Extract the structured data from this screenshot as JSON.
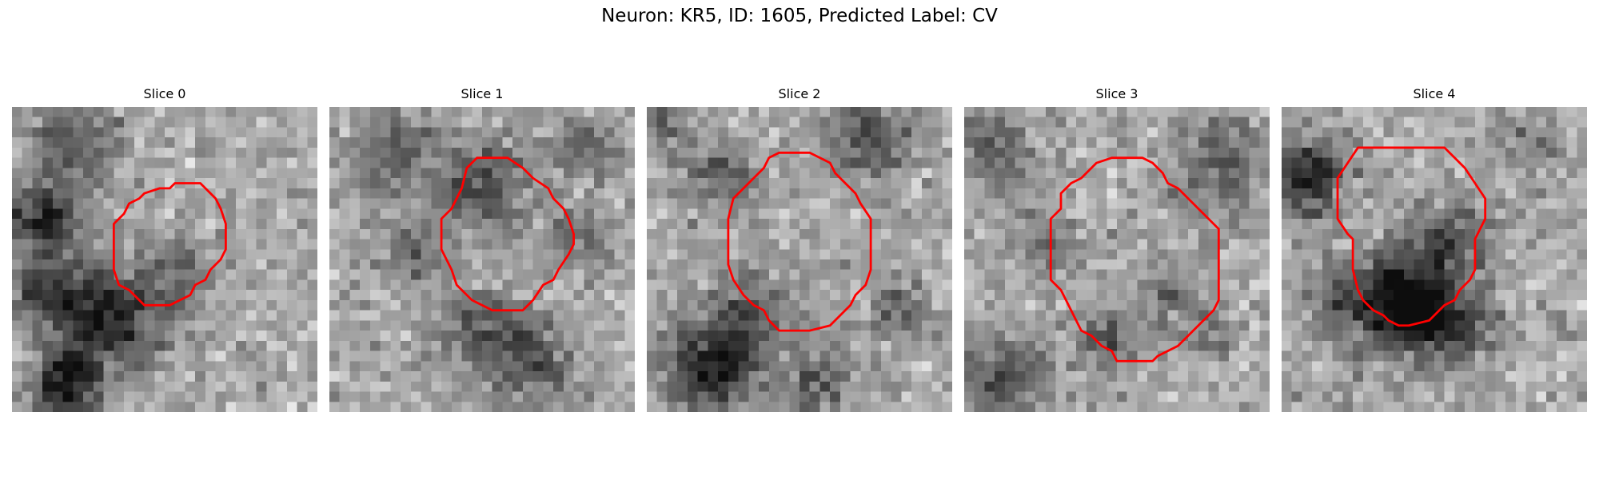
{
  "figure": {
    "title": "Neuron: KR5, ID: 1605, Predicted Label: CV",
    "slices": [
      {
        "title": "Slice 0",
        "seed": 11,
        "dark_spots": [
          [
            6,
            4,
            3.0,
            0.35
          ],
          [
            3,
            11,
            2.5,
            0.5
          ],
          [
            8,
            20,
            3.0,
            0.5
          ],
          [
            5,
            28,
            2.5,
            0.4
          ],
          [
            3,
            18,
            2.0,
            0.45
          ],
          [
            6,
            26,
            2.0,
            0.3
          ],
          [
            12,
            22,
            3.5,
            0.2
          ],
          [
            16,
            16,
            2.5,
            0.25
          ]
        ],
        "contour": [
          [
            16,
            7.5
          ],
          [
            18.5,
            7.5
          ],
          [
            19.5,
            8.5
          ],
          [
            20,
            9
          ],
          [
            20.5,
            10
          ],
          [
            21,
            11.5
          ],
          [
            21,
            14
          ],
          [
            20.5,
            15
          ],
          [
            19.5,
            16
          ],
          [
            19,
            17
          ],
          [
            18,
            17.5
          ],
          [
            17.5,
            18.5
          ],
          [
            16.5,
            19
          ],
          [
            15.5,
            19.5
          ],
          [
            13,
            19.5
          ],
          [
            12,
            18.5
          ],
          [
            11.5,
            18
          ],
          [
            10.5,
            17.5
          ],
          [
            10,
            16
          ],
          [
            10,
            11.5
          ],
          [
            11,
            10.5
          ],
          [
            11.5,
            9.5
          ],
          [
            12.5,
            9
          ],
          [
            13,
            8.5
          ],
          [
            14.5,
            8
          ],
          [
            15.5,
            8
          ]
        ]
      },
      {
        "title": "Slice 1",
        "seed": 23,
        "dark_spots": [
          [
            15,
            8,
            3.0,
            0.4
          ],
          [
            6,
            5,
            3.0,
            0.3
          ],
          [
            15,
            22,
            3.0,
            0.3
          ],
          [
            20,
            25,
            3.0,
            0.3
          ],
          [
            8,
            14,
            2.0,
            0.3
          ],
          [
            24,
            13,
            2.0,
            0.25
          ],
          [
            25,
            4,
            2.0,
            0.3
          ]
        ],
        "contour": [
          [
            14.5,
            5
          ],
          [
            17.5,
            5
          ],
          [
            19,
            6
          ],
          [
            20,
            7
          ],
          [
            21.5,
            8
          ],
          [
            22,
            9
          ],
          [
            23,
            10
          ],
          [
            23.5,
            11
          ],
          [
            24,
            12.5
          ],
          [
            24,
            13.5
          ],
          [
            23.5,
            14.5
          ],
          [
            22.5,
            16
          ],
          [
            22,
            17
          ],
          [
            21,
            17.5
          ],
          [
            20,
            19
          ],
          [
            19,
            20
          ],
          [
            16,
            20
          ],
          [
            15,
            19.5
          ],
          [
            14,
            19
          ],
          [
            13.5,
            18.5
          ],
          [
            12.5,
            17.5
          ],
          [
            12,
            16
          ],
          [
            11.5,
            15
          ],
          [
            11,
            14
          ],
          [
            11,
            11
          ],
          [
            12,
            10
          ],
          [
            13,
            8
          ],
          [
            13.5,
            6
          ]
        ]
      },
      {
        "title": "Slice 2",
        "seed": 37,
        "dark_spots": [
          [
            6,
            26,
            3.0,
            0.5
          ],
          [
            10,
            21,
            3.0,
            0.35
          ],
          [
            22,
            3,
            3.0,
            0.35
          ],
          [
            7,
            7,
            2.5,
            0.3
          ],
          [
            17,
            27,
            2.5,
            0.3
          ],
          [
            25,
            20,
            2.0,
            0.3
          ],
          [
            2,
            2,
            2.0,
            0.2
          ]
        ],
        "contour": [
          [
            13,
            4.5
          ],
          [
            16,
            4.5
          ],
          [
            17,
            5
          ],
          [
            18,
            5.5
          ],
          [
            18.5,
            6.5
          ],
          [
            19.5,
            7.5
          ],
          [
            20.5,
            8.5
          ],
          [
            21,
            9.5
          ],
          [
            22,
            11
          ],
          [
            22,
            16
          ],
          [
            21.5,
            17.5
          ],
          [
            20.5,
            18.5
          ],
          [
            20,
            19.5
          ],
          [
            19,
            20.5
          ],
          [
            18,
            21.5
          ],
          [
            16,
            22
          ],
          [
            13,
            22
          ],
          [
            12,
            21
          ],
          [
            11.5,
            20
          ],
          [
            10.5,
            19.5
          ],
          [
            9.5,
            18.5
          ],
          [
            8.5,
            17
          ],
          [
            8,
            15.5
          ],
          [
            8,
            11
          ],
          [
            8.5,
            9
          ],
          [
            9.5,
            8
          ],
          [
            10.5,
            7
          ],
          [
            11.5,
            6
          ],
          [
            12,
            5
          ]
        ]
      },
      {
        "title": "Slice 3",
        "seed": 52,
        "dark_spots": [
          [
            4,
            27,
            3.0,
            0.4
          ],
          [
            25,
            6,
            3.0,
            0.3
          ],
          [
            3,
            4,
            2.5,
            0.3
          ],
          [
            14,
            23,
            2.0,
            0.35
          ],
          [
            23,
            22,
            2.0,
            0.2
          ],
          [
            8,
            13,
            2.0,
            0.25
          ],
          [
            20,
            18,
            2.0,
            0.2
          ]
        ],
        "contour": [
          [
            14.5,
            5
          ],
          [
            17.5,
            5
          ],
          [
            18.5,
            5.5
          ],
          [
            19.5,
            6.5
          ],
          [
            20,
            7.5
          ],
          [
            21,
            8
          ],
          [
            22,
            9
          ],
          [
            23,
            10
          ],
          [
            24,
            11
          ],
          [
            25,
            12
          ],
          [
            25,
            19
          ],
          [
            24.5,
            20
          ],
          [
            23.5,
            21
          ],
          [
            22.5,
            22
          ],
          [
            21.5,
            23
          ],
          [
            21,
            23.5
          ],
          [
            19,
            24.5
          ],
          [
            18.5,
            25
          ],
          [
            15,
            25
          ],
          [
            14.5,
            24
          ],
          [
            13.5,
            23.5
          ],
          [
            12.5,
            22.5
          ],
          [
            11.5,
            22
          ],
          [
            11,
            21
          ],
          [
            10.5,
            20
          ],
          [
            10,
            19
          ],
          [
            9.5,
            18
          ],
          [
            8.5,
            17
          ],
          [
            8.5,
            11
          ],
          [
            9.5,
            10
          ],
          [
            9.5,
            8.5
          ],
          [
            10.5,
            7.5
          ],
          [
            11.5,
            7
          ],
          [
            12.5,
            6
          ],
          [
            13,
            5.5
          ]
        ]
      },
      {
        "title": "Slice 4",
        "seed": 68,
        "dark_spots": [
          [
            11,
            19,
            3.5,
            0.55
          ],
          [
            14,
            20,
            2.5,
            0.4
          ],
          [
            17,
            13,
            2.5,
            0.35
          ],
          [
            3,
            6,
            2.5,
            0.35
          ],
          [
            2,
            8,
            2.0,
            0.3
          ],
          [
            18,
            22,
            2.5,
            0.3
          ],
          [
            5,
            19,
            2.0,
            0.2
          ],
          [
            25,
            3,
            2.0,
            0.2
          ]
        ],
        "contour": [
          [
            7.5,
            4
          ],
          [
            16,
            4
          ],
          [
            17,
            5
          ],
          [
            18,
            6
          ],
          [
            19,
            7.5
          ],
          [
            20,
            9
          ],
          [
            20,
            11
          ],
          [
            19.5,
            12
          ],
          [
            19,
            13
          ],
          [
            19,
            16
          ],
          [
            18.5,
            17
          ],
          [
            17.5,
            18
          ],
          [
            17,
            19
          ],
          [
            16,
            19.5
          ],
          [
            15,
            20.5
          ],
          [
            14.5,
            21
          ],
          [
            12.5,
            21.5
          ],
          [
            11.5,
            21.5
          ],
          [
            10.5,
            21
          ],
          [
            10,
            20.5
          ],
          [
            9,
            20
          ],
          [
            8,
            19
          ],
          [
            7.5,
            18
          ],
          [
            7,
            16
          ],
          [
            7,
            13
          ],
          [
            6.5,
            12.5
          ],
          [
            5.5,
            11
          ],
          [
            5.5,
            7
          ],
          [
            6.5,
            5.5
          ]
        ]
      }
    ]
  }
}
